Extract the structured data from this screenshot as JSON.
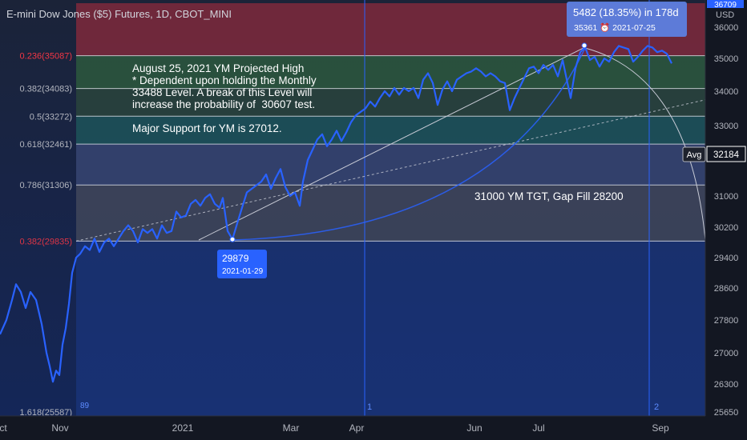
{
  "title": "E-mini Dow Jones ($5) Futures, 1D, CBOT_MINI",
  "currency": "USD",
  "top_label": "36709",
  "chart_data": {
    "type": "line",
    "x_labels": [
      "ct",
      "Nov",
      "2021",
      "Mar",
      "Apr",
      "Jun",
      "Jul",
      "Sep"
    ],
    "y_ticks": [
      36000,
      35000,
      34000,
      33000,
      32184,
      31000,
      30200,
      29400,
      28600,
      27800,
      27000,
      26300,
      25650
    ],
    "fib_levels": [
      {
        "label": "0.236(35087)",
        "value": 35087,
        "color": "#f23645"
      },
      {
        "label": "0.382(34083)",
        "value": 34083,
        "color": "#b2b5be"
      },
      {
        "label": "0.5(33272)",
        "value": 33272,
        "color": "#b2b5be"
      },
      {
        "label": "0.618(32461)",
        "value": 32461,
        "color": "#b2b5be"
      },
      {
        "label": "0.786(31306)",
        "value": 31306,
        "color": "#b2b5be"
      },
      {
        "label": "1.618(25587)",
        "value": 25587,
        "color": "#b2b5be"
      }
    ],
    "fib_left_overlap": "0.382(29835)",
    "series": [
      {
        "values": [
          [
            0,
            27450
          ],
          [
            8,
            27800
          ],
          [
            15,
            28300
          ],
          [
            20,
            28700
          ],
          [
            26,
            28500
          ],
          [
            32,
            28100
          ],
          [
            38,
            28500
          ],
          [
            45,
            28300
          ],
          [
            52,
            27700
          ],
          [
            58,
            27000
          ],
          [
            62,
            26700
          ],
          [
            66,
            26350
          ],
          [
            70,
            26600
          ],
          [
            74,
            26500
          ],
          [
            78,
            27200
          ],
          [
            82,
            27600
          ],
          [
            86,
            28200
          ],
          [
            90,
            29000
          ],
          [
            95,
            29400
          ],
          [
            100,
            29500
          ],
          [
            106,
            29700
          ],
          [
            112,
            29600
          ],
          [
            118,
            29900
          ],
          [
            124,
            29550
          ],
          [
            130,
            29800
          ],
          [
            136,
            29900
          ],
          [
            142,
            29700
          ],
          [
            148,
            29900
          ],
          [
            154,
            30100
          ],
          [
            160,
            30250
          ],
          [
            166,
            30100
          ],
          [
            172,
            29800
          ],
          [
            178,
            30150
          ],
          [
            184,
            30050
          ],
          [
            190,
            30150
          ],
          [
            196,
            29900
          ],
          [
            202,
            30250
          ],
          [
            208,
            30050
          ],
          [
            214,
            30100
          ],
          [
            220,
            30600
          ],
          [
            226,
            30450
          ],
          [
            232,
            30500
          ],
          [
            238,
            30800
          ],
          [
            244,
            30900
          ],
          [
            250,
            30750
          ],
          [
            256,
            30950
          ],
          [
            262,
            31050
          ],
          [
            268,
            30800
          ],
          [
            274,
            30700
          ],
          [
            278,
            30950
          ],
          [
            284,
            30100
          ],
          [
            290,
            29879
          ],
          [
            296,
            30300
          ],
          [
            302,
            30700
          ],
          [
            308,
            31100
          ],
          [
            314,
            31200
          ],
          [
            320,
            31300
          ],
          [
            326,
            31400
          ],
          [
            332,
            31600
          ],
          [
            338,
            31200
          ],
          [
            344,
            31500
          ],
          [
            350,
            31750
          ],
          [
            356,
            31250
          ],
          [
            362,
            31000
          ],
          [
            368,
            31100
          ],
          [
            374,
            30750
          ],
          [
            378,
            31400
          ],
          [
            384,
            32000
          ],
          [
            390,
            32300
          ],
          [
            396,
            32600
          ],
          [
            402,
            32750
          ],
          [
            408,
            32400
          ],
          [
            414,
            32600
          ],
          [
            420,
            32850
          ],
          [
            426,
            32550
          ],
          [
            432,
            32800
          ],
          [
            438,
            33100
          ],
          [
            444,
            33300
          ],
          [
            450,
            33400
          ],
          [
            456,
            33500
          ],
          [
            462,
            33700
          ],
          [
            468,
            33550
          ],
          [
            474,
            33800
          ],
          [
            480,
            34000
          ],
          [
            486,
            33850
          ],
          [
            492,
            34100
          ],
          [
            498,
            33900
          ],
          [
            504,
            34100
          ],
          [
            510,
            34000
          ],
          [
            516,
            34100
          ],
          [
            522,
            33800
          ],
          [
            528,
            34350
          ],
          [
            534,
            34550
          ],
          [
            540,
            34250
          ],
          [
            546,
            33600
          ],
          [
            552,
            34050
          ],
          [
            558,
            34300
          ],
          [
            564,
            34000
          ],
          [
            570,
            34350
          ],
          [
            576,
            34450
          ],
          [
            582,
            34550
          ],
          [
            588,
            34600
          ],
          [
            594,
            34700
          ],
          [
            600,
            34600
          ],
          [
            606,
            34450
          ],
          [
            612,
            34550
          ],
          [
            618,
            34450
          ],
          [
            624,
            34300
          ],
          [
            630,
            34250
          ],
          [
            636,
            33450
          ],
          [
            642,
            33800
          ],
          [
            648,
            34100
          ],
          [
            654,
            34400
          ],
          [
            660,
            34700
          ],
          [
            666,
            34750
          ],
          [
            672,
            34550
          ],
          [
            678,
            34800
          ],
          [
            684,
            34650
          ],
          [
            690,
            34800
          ],
          [
            696,
            34450
          ],
          [
            702,
            34950
          ],
          [
            708,
            34250
          ],
          [
            712,
            33800
          ],
          [
            718,
            34700
          ],
          [
            724,
            35200
          ],
          [
            730,
            35361
          ],
          [
            736,
            34950
          ],
          [
            742,
            35050
          ],
          [
            748,
            34750
          ],
          [
            754,
            35000
          ],
          [
            760,
            34900
          ],
          [
            766,
            35200
          ],
          [
            772,
            35400
          ],
          [
            778,
            35350
          ],
          [
            784,
            35300
          ],
          [
            790,
            34900
          ],
          [
            796,
            35050
          ],
          [
            802,
            35250
          ],
          [
            808,
            35400
          ],
          [
            814,
            35350
          ],
          [
            820,
            35200
          ],
          [
            826,
            35250
          ],
          [
            832,
            35150
          ],
          [
            838,
            34850
          ]
        ],
        "color": "#2962ff"
      }
    ],
    "annotations": [
      {
        "text": "29879",
        "sub": "2021-01-29",
        "value": 29879
      },
      {
        "text": "5482 (18.35%) in 178d",
        "sub": "35361 ⏰ 2021-07-25",
        "value": 35361
      }
    ],
    "avg_label": "Avg",
    "avg_value": "32184",
    "vertical_markers": [
      "1",
      "2"
    ],
    "bottom_left_marker": "89",
    "note_main": "August 25, 2021 YM Projected High\n* Dependent upon holding the Monthly\n33488 Level. A break of this Level will\nincrease the probability of  30607 test.\n\nMajor Support for YM is 27012.",
    "note_target": "31000 YM TGT, Gap Fill 28200"
  }
}
